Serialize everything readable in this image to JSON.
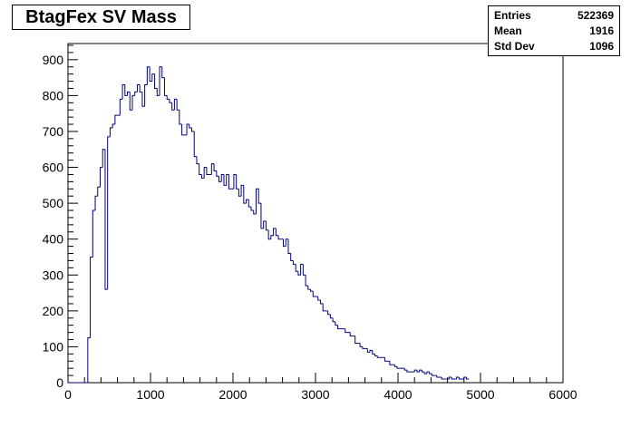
{
  "chart_data": {
    "type": "bar",
    "title": "BtagFex SV Mass",
    "xlabel": "",
    "ylabel": "",
    "xlim": [
      0,
      6000
    ],
    "ylim": [
      0,
      945
    ],
    "bin_width": 30,
    "bin_start": 0,
    "x_ticks": [
      0,
      1000,
      2000,
      3000,
      4000,
      5000,
      6000
    ],
    "y_ticks": [
      0,
      100,
      200,
      300,
      400,
      500,
      600,
      700,
      800,
      900
    ],
    "grid": false,
    "line_color": "#000080",
    "values": [
      0,
      0,
      0,
      0,
      0,
      0,
      0,
      0,
      125,
      350,
      480,
      520,
      545,
      600,
      650,
      260,
      685,
      710,
      720,
      745,
      745,
      790,
      830,
      800,
      810,
      760,
      800,
      810,
      830,
      810,
      770,
      830,
      880,
      840,
      860,
      820,
      800,
      880,
      850,
      800,
      790,
      780,
      760,
      790,
      760,
      720,
      690,
      690,
      720,
      710,
      700,
      630,
      610,
      580,
      570,
      600,
      580,
      580,
      610,
      590,
      575,
      560,
      580,
      550,
      580,
      540,
      540,
      580,
      540,
      520,
      550,
      500,
      510,
      490,
      480,
      470,
      540,
      500,
      430,
      450,
      425,
      400,
      410,
      430,
      410,
      400,
      400,
      380,
      400,
      360,
      340,
      330,
      310,
      300,
      330,
      300,
      270,
      260,
      255,
      240,
      240,
      230,
      220,
      200,
      200,
      190,
      180,
      170,
      160,
      150,
      150,
      150,
      140,
      140,
      130,
      130,
      110,
      110,
      100,
      95,
      95,
      85,
      90,
      80,
      75,
      70,
      70,
      70,
      60,
      60,
      50,
      50,
      45,
      40,
      40,
      40,
      35,
      30,
      30,
      30,
      35,
      30,
      35,
      30,
      25,
      30,
      25,
      20,
      20,
      15,
      15,
      10,
      10,
      10,
      15,
      10,
      10,
      15,
      10,
      10,
      15,
      10
    ]
  },
  "stats": {
    "rows": [
      {
        "label": "Entries",
        "value": "522369"
      },
      {
        "label": "Mean",
        "value": "1916"
      },
      {
        "label": "Std Dev",
        "value": "1096"
      }
    ]
  }
}
